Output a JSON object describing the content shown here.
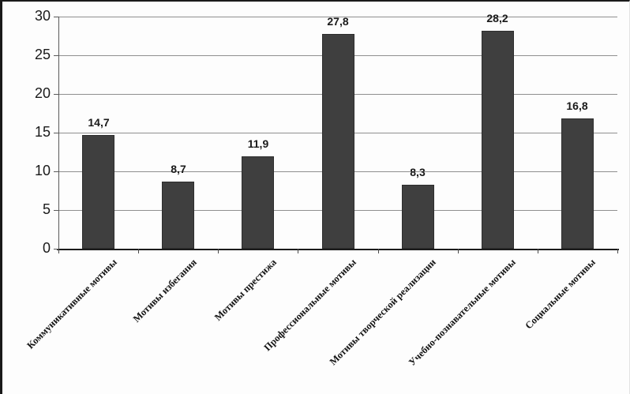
{
  "chart_data": {
    "type": "bar",
    "title": "",
    "xlabel": "",
    "ylabel": "",
    "categories": [
      "Коммуникативные мотивы",
      "Мотивы избегания",
      "Мотивы престижа",
      "Профессиональные мотивы",
      "Мотивы творческой реализации",
      "Учебно-познавательные мотивы",
      "Социальные мотивы"
    ],
    "values": [
      14.7,
      8.7,
      11.9,
      27.8,
      8.3,
      28.2,
      16.8
    ],
    "value_labels": [
      "14,7",
      "8,7",
      "11,9",
      "27,8",
      "8,3",
      "28,2",
      "16,8"
    ],
    "ylim": [
      0,
      30
    ],
    "yticks": [
      0,
      5,
      10,
      15,
      20,
      25,
      30
    ],
    "grid": "horizontal",
    "legend": "none",
    "colors": {
      "bar": "#3f3f3f",
      "bar_border": "#2d2d2d",
      "gridline": "#8f8f8f",
      "axis": "#1c1c1c",
      "text": "#1a1a1a"
    }
  }
}
